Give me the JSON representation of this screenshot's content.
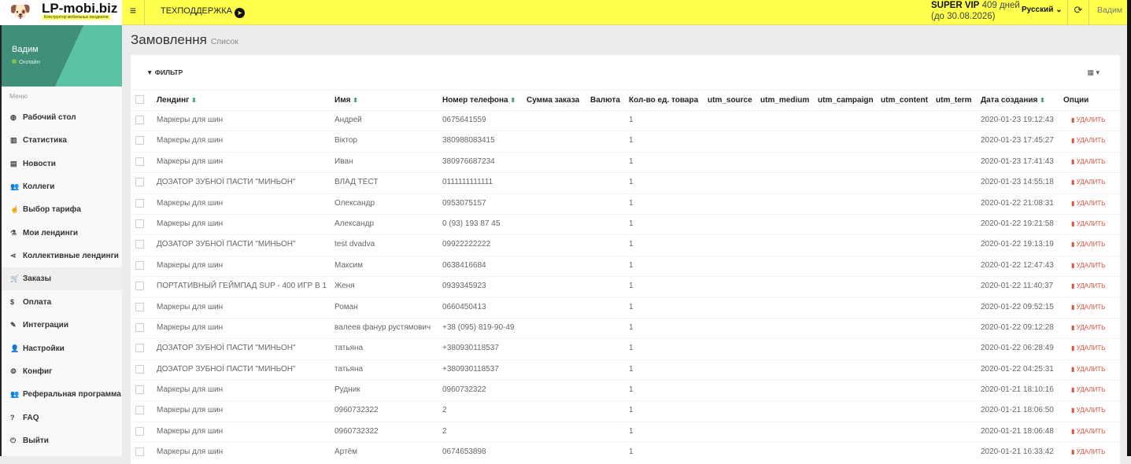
{
  "brand": {
    "name": "LP-mobi.biz",
    "tagline": "Конструктор мобильных лендингов"
  },
  "header": {
    "support": "ТЕХПОДДЕРЖКА",
    "plan": "SUPER VIP",
    "days": "409 дней",
    "until": "(до 30.08.2026)",
    "language": "Русский",
    "user": "Вадим"
  },
  "profile": {
    "name": "Вадим",
    "status": "Онлайн"
  },
  "menu": {
    "header": "Меню",
    "items": [
      {
        "label": "Рабочий стол",
        "icon": "dashboard-icon",
        "glyph": "◍"
      },
      {
        "label": "Статистика",
        "icon": "bar-chart-icon",
        "glyph": "▥"
      },
      {
        "label": "Новости",
        "icon": "newspaper-icon",
        "glyph": "▤"
      },
      {
        "label": "Коллеги",
        "icon": "users-icon",
        "glyph": "👥"
      },
      {
        "label": "Выбор тарифа",
        "icon": "hand-pointer-icon",
        "glyph": "☝"
      },
      {
        "label": "Мои лендинги",
        "icon": "flask-icon",
        "glyph": "⚗"
      },
      {
        "label": "Коллективные лендинги",
        "icon": "share-icon",
        "glyph": "⋖"
      },
      {
        "label": "Заказы",
        "icon": "cart-icon",
        "glyph": "🛒",
        "active": true
      },
      {
        "label": "Оплата",
        "icon": "dollar-icon",
        "glyph": "$"
      },
      {
        "label": "Интеграции",
        "icon": "plug-icon",
        "glyph": "✎"
      },
      {
        "label": "Настройки",
        "icon": "user-icon",
        "glyph": "👤"
      },
      {
        "label": "Конфиг",
        "icon": "cogs-icon",
        "glyph": "⚙"
      },
      {
        "label": "Реферальная программа",
        "icon": "user-plus-icon",
        "glyph": "👥"
      },
      {
        "label": "FAQ",
        "icon": "question-icon",
        "glyph": "?"
      },
      {
        "label": "Выйти",
        "icon": "power-icon",
        "glyph": "⏻"
      }
    ]
  },
  "page": {
    "title": "Замовлення",
    "subtitle": "Список",
    "filter": "ФИЛЬТР"
  },
  "table": {
    "columns": [
      "Лендинг",
      "Имя",
      "Номер телефона",
      "Сумма заказа",
      "Валюта",
      "Кол-во ед. товара",
      "utm_source",
      "utm_medium",
      "utm_campaign",
      "utm_content",
      "utm_term",
      "Дата создания",
      "Опции"
    ],
    "delete_label": "УДАЛИТЬ",
    "rows": [
      [
        "Маркеры для шин",
        "Андрей",
        "0675641559",
        "1",
        "2020-01-23 19:12:43"
      ],
      [
        "Маркеры для шин",
        "Віктор",
        "380988083415",
        "1",
        "2020-01-23 17:45:27"
      ],
      [
        "Маркеры для шин",
        "Иван",
        "380976687234",
        "1",
        "2020-01-23 17:41:43"
      ],
      [
        "ДОЗАТОР ЗУБНОЇ ПАСТИ \"МИНЬОН\"",
        "ВЛАД ТЕСТ",
        "0111111111111",
        "1",
        "2020-01-23 14:55:18"
      ],
      [
        "Маркеры для шин",
        "Олександр",
        "0953075157",
        "1",
        "2020-01-22 21:08:31"
      ],
      [
        "Маркеры для шин",
        "Александр",
        "0 (93) 193 87 45",
        "1",
        "2020-01-22 19:21:58"
      ],
      [
        "ДОЗАТОР ЗУБНОЇ ПАСТИ \"МИНЬОН\"",
        "test dvadva",
        "09922222222",
        "1",
        "2020-01-22 19:13:19"
      ],
      [
        "Маркеры для шин",
        "Максим",
        "0638416684",
        "1",
        "2020-01-22 12:47:43"
      ],
      [
        "ПОРТАТИВНЫЙ ГЕЙМПАД SUP - 400 ИГР В 1",
        "Женя",
        "0939345923",
        "1",
        "2020-01-22 11:40:37"
      ],
      [
        "Маркеры для шин",
        "Роман",
        "0660450413",
        "1",
        "2020-01-22 09:52:15"
      ],
      [
        "Маркеры для шин",
        "валеев фанур рустямович",
        "+38 (095) 819-90-49",
        "1",
        "2020-01-22 09:12:28"
      ],
      [
        "ДОЗАТОР ЗУБНОЇ ПАСТИ \"МИНЬОН\"",
        "татьяна",
        "+380930118537",
        "1",
        "2020-01-22 06:28:49"
      ],
      [
        "ДОЗАТОР ЗУБНОЇ ПАСТИ \"МИНЬОН\"",
        "татьяна",
        "+380930118537",
        "1",
        "2020-01-22 04:25:31"
      ],
      [
        "Маркеры для шин",
        "Рудник",
        "0960732322",
        "1",
        "2020-01-21 18:10:16"
      ],
      [
        "Маркеры для шин",
        "0960732322",
        "2",
        "1",
        "2020-01-21 18:06:50"
      ],
      [
        "Маркеры для шин",
        "0960732322",
        "2",
        "1",
        "2020-01-21 18:06:48"
      ],
      [
        "Маркеры для шин",
        "Артём",
        "0674653898",
        "1",
        "2020-01-21 16:33:42"
      ]
    ]
  }
}
